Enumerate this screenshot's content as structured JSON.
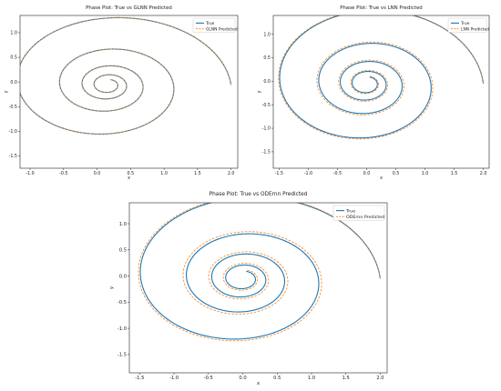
{
  "colors": {
    "true_series": "#1f77b4",
    "predicted_series": "#ff7f0e",
    "axes": "#222222",
    "background": "#ffffff"
  },
  "chart_data": [
    {
      "type": "line",
      "title": "Phase Plot: True vs GLNN Predicted",
      "xlabel": "x",
      "ylabel": "y",
      "xlim": [
        -1.15,
        2.1
      ],
      "ylim": [
        -1.75,
        1.35
      ],
      "xticks": [
        -1.0,
        -0.5,
        0.0,
        0.5,
        1.0,
        1.5,
        2.0
      ],
      "xtick_labels": [
        "-1.0",
        "-0.5",
        "0.0",
        "0.5",
        "1.0",
        "1.5",
        "2.0"
      ],
      "yticks": [
        -1.5,
        -1.0,
        -0.5,
        0.0,
        0.5,
        1.0
      ],
      "ytick_labels": [
        "-1.5",
        "-1.0",
        "-0.5",
        "0.0",
        "0.5",
        "1.0"
      ],
      "legend_position": "top-right",
      "grid": false,
      "series": [
        {
          "name": "True",
          "style": "solid",
          "curve": {
            "type": "damped-spiral",
            "x0": 2.0,
            "y0": 0.0,
            "decay": 0.1,
            "turns": 4.2,
            "center": [
              0.16,
              -0.06
            ],
            "x_scale": 0.88,
            "y_scale": 0.76
          }
        },
        {
          "name": "GLNN Predicted",
          "style": "dashed",
          "curve": {
            "type": "damped-spiral",
            "x0": 2.0,
            "y0": 0.0,
            "decay": 0.1,
            "turns": 4.2,
            "center": [
              0.16,
              -0.06
            ],
            "x_scale": 0.88,
            "y_scale": 0.76
          }
        }
      ]
    },
    {
      "type": "line",
      "title": "Phase Plot: True vs LNN Predicted",
      "xlabel": "x",
      "ylabel": "y",
      "xlim": [
        -1.6,
        2.1
      ],
      "ylim": [
        -1.85,
        1.4
      ],
      "xticks": [
        -1.5,
        -1.0,
        -0.5,
        0.0,
        0.5,
        1.0,
        1.5,
        2.0
      ],
      "xtick_labels": [
        "-1.5",
        "-1.0",
        "-0.5",
        "0.0",
        "0.5",
        "1.0",
        "1.5",
        "2.0"
      ],
      "yticks": [
        -1.5,
        -1.0,
        -0.5,
        0.0,
        0.5,
        1.0
      ],
      "ytick_labels": [
        "-1.5",
        "-1.0",
        "-0.5",
        "0.0",
        "0.5",
        "1.0"
      ],
      "legend_position": "top-right",
      "grid": false,
      "series": [
        {
          "name": "True",
          "style": "solid",
          "curve": {
            "type": "damped-spiral",
            "x0": 2.0,
            "y0": 0.0,
            "decay": 0.095,
            "turns": 4.2,
            "center": [
              0.0,
              -0.05
            ],
            "x_scale": 1.0,
            "y_scale": 0.9
          }
        },
        {
          "name": "LNN Predicted",
          "style": "dashed",
          "curve": {
            "type": "damped-spiral",
            "x0": 2.0,
            "y0": 0.0,
            "decay": 0.091,
            "turns": 4.2,
            "center": [
              0.0,
              -0.05
            ],
            "x_scale": 1.0,
            "y_scale": 0.9
          }
        }
      ]
    },
    {
      "type": "line",
      "title": "Phase Plot: True vs ODErnn Predicted",
      "xlabel": "x",
      "ylabel": "y",
      "xlim": [
        -1.65,
        2.1
      ],
      "ylim": [
        -1.85,
        1.4
      ],
      "xticks": [
        -1.5,
        -1.0,
        -0.5,
        0.0,
        0.5,
        1.0,
        1.5,
        2.0
      ],
      "xtick_labels": [
        "-1.5",
        "-1.0",
        "-0.5",
        "0.0",
        "0.5",
        "1.0",
        "1.5",
        "2.0"
      ],
      "yticks": [
        -1.5,
        -1.0,
        -0.5,
        0.0,
        0.5,
        1.0
      ],
      "ytick_labels": [
        "-1.5",
        "-1.0",
        "-0.5",
        "0.0",
        "0.5",
        "1.0"
      ],
      "legend_position": "top-right",
      "grid": false,
      "series": [
        {
          "name": "True",
          "style": "solid",
          "curve": {
            "type": "damped-spiral",
            "x0": 2.0,
            "y0": 0.0,
            "decay": 0.095,
            "turns": 4.2,
            "center": [
              0.0,
              -0.05
            ],
            "x_scale": 1.0,
            "y_scale": 0.9
          }
        },
        {
          "name": "ODErnn Predicted",
          "style": "dashed",
          "curve": {
            "type": "damped-spiral",
            "x0": 2.0,
            "y0": 0.0,
            "decay": 0.089,
            "turns": 4.2,
            "center": [
              0.0,
              -0.05
            ],
            "x_scale": 1.0,
            "y_scale": 0.9
          }
        }
      ]
    }
  ]
}
